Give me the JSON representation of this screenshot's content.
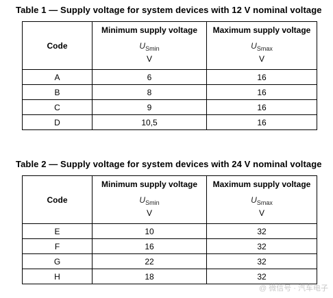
{
  "table1": {
    "caption": "Table 1 — Supply voltage for system devices with 12 V nominal voltage",
    "headers": {
      "code": "Code",
      "min_title": "Minimum supply voltage",
      "min_symbol": "U",
      "min_symbol_sub": "Smin",
      "min_unit": "V",
      "max_title": "Maximum supply voltage",
      "max_symbol": "U",
      "max_symbol_sub": "Smax",
      "max_unit": "V"
    },
    "rows": [
      {
        "code": "A",
        "min": "6",
        "max": "16"
      },
      {
        "code": "B",
        "min": "8",
        "max": "16"
      },
      {
        "code": "C",
        "min": "9",
        "max": "16"
      },
      {
        "code": "D",
        "min": "10,5",
        "max": "16"
      }
    ]
  },
  "table2": {
    "caption": "Table 2 — Supply voltage for system devices with 24 V nominal voltage",
    "headers": {
      "code": "Code",
      "min_title": "Minimum supply voltage",
      "min_symbol": "U",
      "min_symbol_sub": "Smin",
      "min_unit": "V",
      "max_title": "Maximum supply voltage",
      "max_symbol": "U",
      "max_symbol_sub": "Smax",
      "max_unit": "V"
    },
    "rows": [
      {
        "code": "E",
        "min": "10",
        "max": "32"
      },
      {
        "code": "F",
        "min": "16",
        "max": "32"
      },
      {
        "code": "G",
        "min": "22",
        "max": "32"
      },
      {
        "code": "H",
        "min": "18",
        "max": "32"
      }
    ]
  },
  "watermark": "@ 微信号 · 汽车电子"
}
